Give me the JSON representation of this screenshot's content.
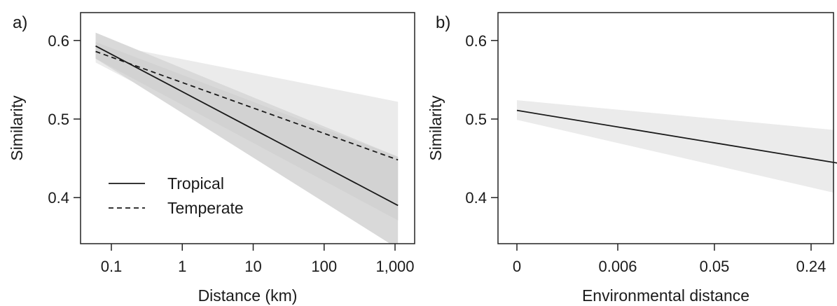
{
  "chart_data": [
    {
      "type": "line",
      "panel_label": "a)",
      "xlabel": "Distance (km)",
      "ylabel": "Similarity",
      "x_scale": "log",
      "x_ticks": [
        0.1,
        1,
        10,
        100,
        1000
      ],
      "x_tick_labels": [
        "0.1",
        "1",
        "10",
        "100",
        "1,000"
      ],
      "xlim": [
        0.05,
        1200
      ],
      "y_ticks": [
        0.4,
        0.5,
        0.6
      ],
      "y_tick_labels": [
        "0.4",
        "0.5",
        "0.6"
      ],
      "ylim": [
        0.335,
        0.63
      ],
      "grid": false,
      "legend_position": "bottom-left",
      "series": [
        {
          "name": "Tropical",
          "line_style": "solid",
          "color": "#1a1a1a",
          "band_color": "#d9d9d9",
          "x": [
            0.06,
            1100
          ],
          "y": [
            0.593,
            0.39
          ],
          "ci_upper": [
            0.61,
            0.452
          ],
          "ci_lower": [
            0.577,
            0.335
          ]
        },
        {
          "name": "Temperate",
          "line_style": "dashed",
          "color": "#1a1a1a",
          "band_color": "#ebebeb",
          "x": [
            0.06,
            1100
          ],
          "y": [
            0.586,
            0.448
          ],
          "ci_upper": [
            0.598,
            0.522
          ],
          "ci_lower": [
            0.572,
            0.371
          ]
        }
      ]
    },
    {
      "type": "line",
      "panel_label": "b)",
      "xlabel": "Environmental distance",
      "ylabel": "Similarity",
      "x_scale": "category-spaced",
      "x_ticks": [
        0,
        0.006,
        0.05,
        0.24
      ],
      "x_tick_labels": [
        "0",
        "0.006",
        "0.05",
        "0.24"
      ],
      "y_ticks": [
        0.4,
        0.5,
        0.6
      ],
      "y_tick_labels": [
        "0.4",
        "0.5",
        "0.6"
      ],
      "ylim": [
        0.335,
        0.63
      ],
      "grid": false,
      "series": [
        {
          "line_style": "solid",
          "color": "#1a1a1a",
          "band_color": "#ebebeb",
          "x": [
            0,
            0.32
          ],
          "y": [
            0.511,
            0.441
          ],
          "ci_upper": [
            0.524,
            0.484
          ],
          "ci_lower": [
            0.499,
            0.401
          ]
        }
      ]
    }
  ]
}
